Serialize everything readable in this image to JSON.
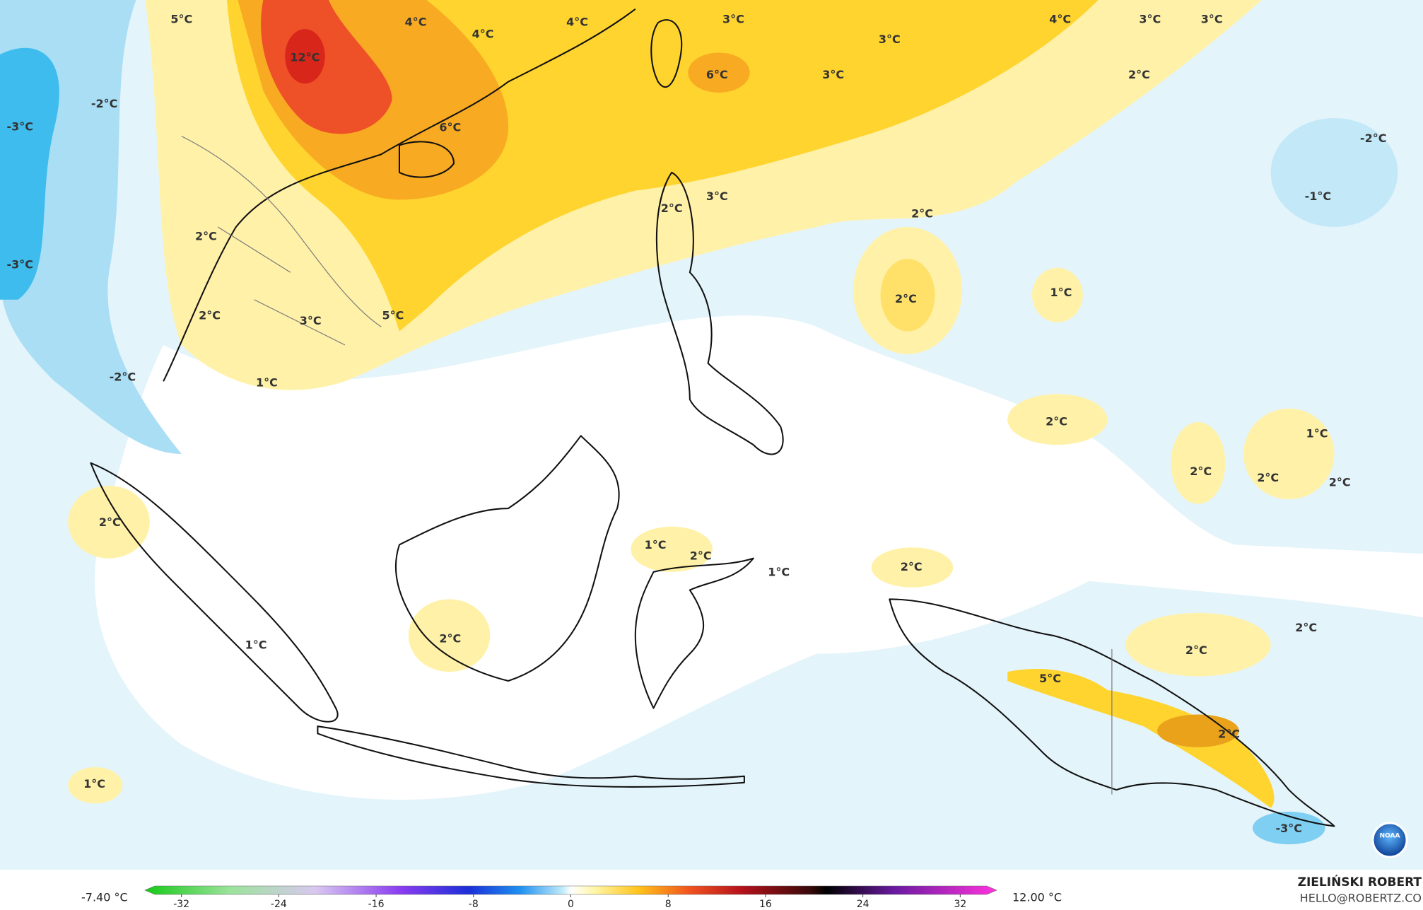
{
  "map": {
    "labels": [
      "5°C",
      "4°C",
      "4°C",
      "4°C",
      "3°C",
      "4°C",
      "3°C",
      "3°C",
      "3°C",
      "12°C",
      "6°C",
      "3°C",
      "2°C",
      "6°C",
      "-2°C",
      "3°C",
      "-1°C",
      "2°C",
      "2°C",
      "2°C",
      "-3°C",
      "-3°C",
      "-2°C",
      "2°C",
      "1°C",
      "2°C",
      "3°C",
      "5°C",
      "-2°C",
      "1°C",
      "2°C",
      "1°C",
      "2°C",
      "2°C",
      "2°C",
      "2°C",
      "1°C",
      "2°C",
      "1°C",
      "2°C",
      "2°C",
      "1°C",
      "2°C",
      "2°C",
      "5°C",
      "2°C",
      "1°C",
      "-3°C"
    ]
  },
  "colorbar": {
    "lim": [
      -35,
      35
    ],
    "ticks": [
      -32,
      -24,
      -16,
      -8,
      0,
      8,
      16,
      24,
      32
    ],
    "min_label": "-7.40 °C",
    "max_label": "12.00 °C"
  },
  "credit": {
    "author": "ZIELIŃSKI ROBERT",
    "contact": "HELLO@ROBERTZ.CO",
    "logo": "NOAA"
  }
}
